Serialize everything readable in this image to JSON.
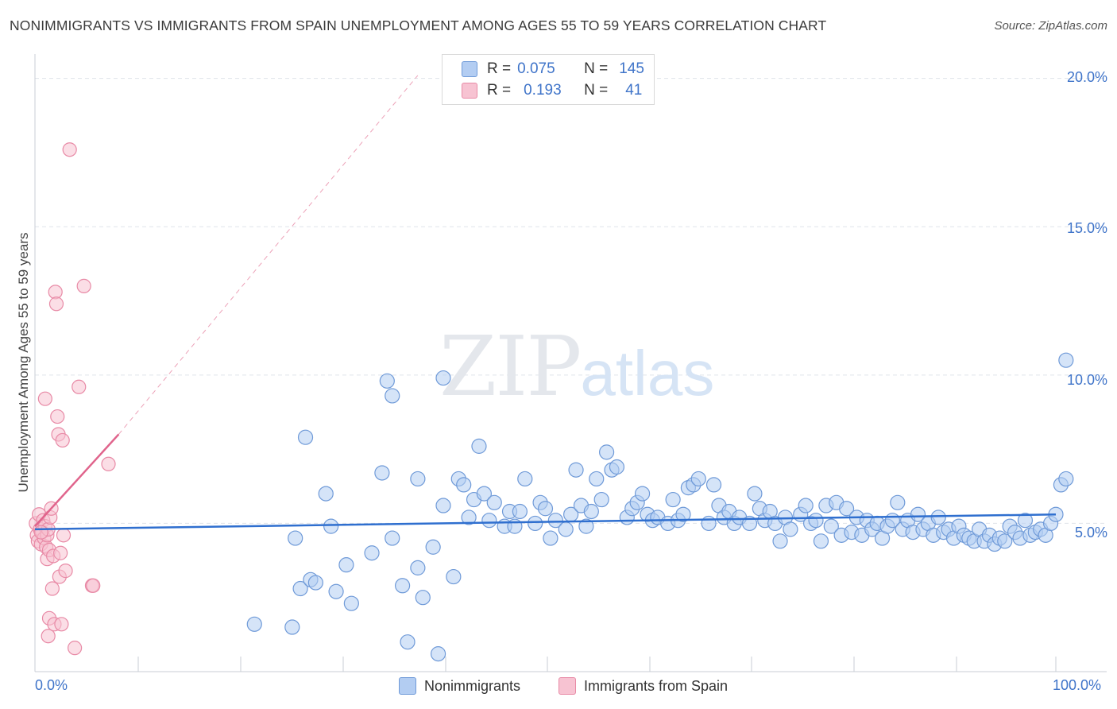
{
  "title": "NONIMMIGRANTS VS IMMIGRANTS FROM SPAIN UNEMPLOYMENT AMONG AGES 55 TO 59 YEARS CORRELATION CHART",
  "source": "Source: ZipAtlas.com",
  "watermark": {
    "zip": "ZIP",
    "atlas": "atlas"
  },
  "legend": {
    "rows": [
      {
        "r_label": "R =",
        "r_value": "0.075",
        "n_label": "N =",
        "n_value": "145"
      },
      {
        "r_label": "R =",
        "r_value": "0.193",
        "n_label": "N =",
        "n_value": "41"
      }
    ]
  },
  "colors": {
    "blue_fill": "#b3cdf2",
    "blue_stroke": "#6f9ad8",
    "blue_line": "#2f6fcf",
    "pink_fill": "#f7c3d2",
    "pink_stroke": "#e88aa6",
    "pink_line": "#e0648c",
    "grid": "#dfe3ea",
    "axis_text": "#3f74c9"
  },
  "chart_data": {
    "type": "scatter",
    "title": "NONIMMIGRANTS VS IMMIGRANTS FROM SPAIN UNEMPLOYMENT AMONG AGES 55 TO 59 YEARS CORRELATION CHART",
    "xlabel": "",
    "ylabel": "Unemployment Among Ages 55 to 59 years",
    "xlim": [
      0,
      100
    ],
    "ylim": [
      0,
      20.5
    ],
    "x_tick_labels": [
      "0.0%",
      "100.0%"
    ],
    "y_ticks": [
      5,
      10,
      15,
      20
    ],
    "y_tick_labels": [
      "5.0%",
      "10.0%",
      "15.0%",
      "20.0%"
    ],
    "series": [
      {
        "name": "Nonimmigrants",
        "color": "blue",
        "trend": {
          "x": [
            0,
            100
          ],
          "y": [
            4.8,
            5.3
          ]
        },
        "points": [
          [
            21.5,
            1.6
          ],
          [
            25.2,
            1.5
          ],
          [
            25.5,
            4.5
          ],
          [
            26,
            2.8
          ],
          [
            26.5,
            7.9
          ],
          [
            27,
            3.1
          ],
          [
            27.5,
            3.0
          ],
          [
            28.5,
            6.0
          ],
          [
            29,
            4.9
          ],
          [
            29.5,
            2.7
          ],
          [
            30.5,
            3.6
          ],
          [
            31,
            2.3
          ],
          [
            33,
            4.0
          ],
          [
            34,
            6.7
          ],
          [
            34.5,
            9.8
          ],
          [
            35,
            9.3
          ],
          [
            35,
            4.5
          ],
          [
            36,
            2.9
          ],
          [
            36.5,
            1.0
          ],
          [
            37.5,
            3.5
          ],
          [
            37.5,
            6.5
          ],
          [
            38,
            2.5
          ],
          [
            39,
            4.2
          ],
          [
            39.5,
            0.6
          ],
          [
            40,
            9.9
          ],
          [
            40,
            5.6
          ],
          [
            41,
            3.2
          ],
          [
            41.5,
            6.5
          ],
          [
            42,
            6.3
          ],
          [
            42.5,
            5.2
          ],
          [
            43,
            5.8
          ],
          [
            43.5,
            7.6
          ],
          [
            44,
            6.0
          ],
          [
            44.5,
            5.1
          ],
          [
            45,
            5.7
          ],
          [
            46,
            4.9
          ],
          [
            46.5,
            5.4
          ],
          [
            47,
            4.9
          ],
          [
            47.5,
            5.4
          ],
          [
            48,
            6.5
          ],
          [
            49,
            5.0
          ],
          [
            49.5,
            5.7
          ],
          [
            50,
            5.5
          ],
          [
            50.5,
            4.5
          ],
          [
            51,
            5.1
          ],
          [
            52,
            4.8
          ],
          [
            52.5,
            5.3
          ],
          [
            53,
            6.8
          ],
          [
            53.5,
            5.6
          ],
          [
            54,
            4.9
          ],
          [
            54.5,
            5.4
          ],
          [
            55,
            6.5
          ],
          [
            55.5,
            5.8
          ],
          [
            56,
            7.4
          ],
          [
            56.5,
            6.8
          ],
          [
            57,
            6.9
          ],
          [
            58,
            5.2
          ],
          [
            58.5,
            5.5
          ],
          [
            59,
            5.7
          ],
          [
            59.5,
            6.0
          ],
          [
            60,
            5.3
          ],
          [
            60.5,
            5.1
          ],
          [
            61,
            5.2
          ],
          [
            62,
            5.0
          ],
          [
            62.5,
            5.8
          ],
          [
            63,
            5.1
          ],
          [
            63.5,
            5.3
          ],
          [
            64,
            6.2
          ],
          [
            64.5,
            6.3
          ],
          [
            65,
            6.5
          ],
          [
            66,
            5.0
          ],
          [
            66.5,
            6.3
          ],
          [
            67,
            5.6
          ],
          [
            67.5,
            5.2
          ],
          [
            68,
            5.4
          ],
          [
            68.5,
            5.0
          ],
          [
            69,
            5.2
          ],
          [
            70,
            5.0
          ],
          [
            70.5,
            6.0
          ],
          [
            71,
            5.5
          ],
          [
            71.5,
            5.1
          ],
          [
            72,
            5.4
          ],
          [
            72.5,
            5.0
          ],
          [
            73,
            4.4
          ],
          [
            73.5,
            5.2
          ],
          [
            74,
            4.8
          ],
          [
            75,
            5.3
          ],
          [
            75.5,
            5.6
          ],
          [
            76,
            5.0
          ],
          [
            76.5,
            5.1
          ],
          [
            77,
            4.4
          ],
          [
            77.5,
            5.6
          ],
          [
            78,
            4.9
          ],
          [
            78.5,
            5.7
          ],
          [
            79,
            4.6
          ],
          [
            79.5,
            5.5
          ],
          [
            80,
            4.7
          ],
          [
            80.5,
            5.2
          ],
          [
            81,
            4.6
          ],
          [
            81.5,
            5.1
          ],
          [
            82,
            4.8
          ],
          [
            82.5,
            5.0
          ],
          [
            83,
            4.5
          ],
          [
            83.5,
            4.9
          ],
          [
            84,
            5.1
          ],
          [
            84.5,
            5.7
          ],
          [
            85,
            4.8
          ],
          [
            85.5,
            5.1
          ],
          [
            86,
            4.7
          ],
          [
            86.5,
            5.3
          ],
          [
            87,
            4.8
          ],
          [
            87.5,
            5.0
          ],
          [
            88,
            4.6
          ],
          [
            88.5,
            5.2
          ],
          [
            89,
            4.7
          ],
          [
            89.5,
            4.8
          ],
          [
            90,
            4.5
          ],
          [
            90.5,
            4.9
          ],
          [
            91,
            4.6
          ],
          [
            91.5,
            4.5
          ],
          [
            92,
            4.4
          ],
          [
            92.5,
            4.8
          ],
          [
            93,
            4.4
          ],
          [
            93.5,
            4.6
          ],
          [
            94,
            4.3
          ],
          [
            94.5,
            4.5
          ],
          [
            95,
            4.4
          ],
          [
            95.5,
            4.9
          ],
          [
            96,
            4.7
          ],
          [
            96.5,
            4.5
          ],
          [
            97,
            5.1
          ],
          [
            97.5,
            4.6
          ],
          [
            98,
            4.7
          ],
          [
            98.5,
            4.8
          ],
          [
            99,
            4.6
          ],
          [
            99.5,
            5.0
          ],
          [
            100,
            5.3
          ],
          [
            100.5,
            6.3
          ],
          [
            101,
            6.5
          ],
          [
            101,
            10.5
          ]
        ]
      },
      {
        "name": "Immigrants from Spain",
        "color": "pink",
        "trend": {
          "x": [
            0,
            8.2
          ],
          "y": [
            4.9,
            8.0
          ]
        },
        "trend_extension": {
          "x": [
            8.2,
            37.5
          ],
          "y": [
            8.0,
            20.1
          ]
        },
        "points": [
          [
            0.1,
            5.0
          ],
          [
            0.2,
            4.6
          ],
          [
            0.3,
            4.4
          ],
          [
            0.4,
            5.3
          ],
          [
            0.5,
            4.8
          ],
          [
            0.6,
            4.3
          ],
          [
            0.7,
            4.7
          ],
          [
            0.8,
            5.1
          ],
          [
            0.9,
            4.5
          ],
          [
            1.0,
            4.9
          ],
          [
            1.1,
            4.2
          ],
          [
            1.2,
            4.6
          ],
          [
            1.3,
            4.8
          ],
          [
            1.0,
            9.2
          ],
          [
            1.2,
            3.8
          ],
          [
            1.4,
            4.1
          ],
          [
            1.5,
            5.2
          ],
          [
            1.6,
            5.5
          ],
          [
            1.7,
            2.8
          ],
          [
            1.8,
            3.9
          ],
          [
            1.4,
            1.8
          ],
          [
            1.3,
            1.2
          ],
          [
            1.9,
            1.6
          ],
          [
            2.0,
            12.8
          ],
          [
            2.1,
            12.4
          ],
          [
            2.2,
            8.6
          ],
          [
            2.3,
            8.0
          ],
          [
            2.4,
            3.2
          ],
          [
            2.5,
            4.0
          ],
          [
            2.6,
            1.6
          ],
          [
            2.7,
            7.8
          ],
          [
            2.8,
            4.6
          ],
          [
            3.0,
            3.4
          ],
          [
            3.4,
            17.6
          ],
          [
            3.9,
            0.8
          ],
          [
            4.3,
            9.6
          ],
          [
            4.8,
            13.0
          ],
          [
            5.6,
            2.9
          ],
          [
            5.7,
            2.9
          ],
          [
            7.2,
            7.0
          ],
          [
            0.6,
            4.7
          ]
        ]
      }
    ],
    "legend": [
      "Nonimmigrants",
      "Immigrants from Spain"
    ]
  }
}
